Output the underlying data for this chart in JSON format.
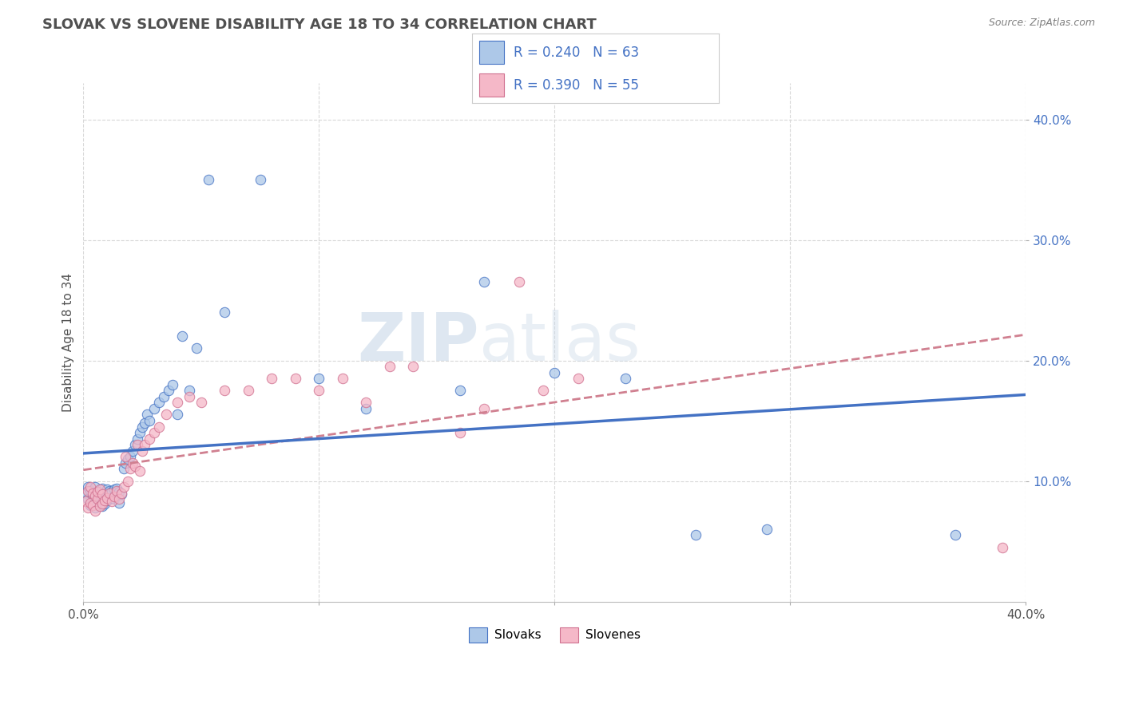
{
  "title": "SLOVAK VS SLOVENE DISABILITY AGE 18 TO 34 CORRELATION CHART",
  "source_text": "Source: ZipAtlas.com",
  "ylabel": "Disability Age 18 to 34",
  "xlim": [
    0.0,
    0.4
  ],
  "ylim": [
    0.0,
    0.43
  ],
  "x_ticks": [
    0.0,
    0.1,
    0.2,
    0.3,
    0.4
  ],
  "x_tick_labels": [
    "0.0%",
    "",
    "",
    "",
    "40.0%"
  ],
  "y_ticks": [
    0.1,
    0.2,
    0.3,
    0.4
  ],
  "y_tick_labels": [
    "10.0%",
    "20.0%",
    "30.0%",
    "40.0%"
  ],
  "legend_r1": "R = 0.240",
  "legend_n1": "N = 63",
  "legend_r2": "R = 0.390",
  "legend_n2": "N = 55",
  "legend_label1": "Slovaks",
  "legend_label2": "Slovenes",
  "color_slovak": "#adc8e8",
  "color_slovene": "#f5b8c8",
  "color_line_slovak": "#4472c4",
  "color_slovene_edge": "#d07090",
  "background_color": "#ffffff",
  "grid_color": "#d8d8d8",
  "title_color": "#505050",
  "title_fontsize": 13,
  "label_color": "#4472c4",
  "slovak_x": [
    0.001,
    0.002,
    0.002,
    0.003,
    0.003,
    0.004,
    0.004,
    0.005,
    0.005,
    0.006,
    0.006,
    0.007,
    0.007,
    0.008,
    0.008,
    0.009,
    0.009,
    0.01,
    0.01,
    0.011,
    0.011,
    0.012,
    0.012,
    0.013,
    0.013,
    0.014,
    0.014,
    0.015,
    0.015,
    0.016,
    0.017,
    0.018,
    0.019,
    0.02,
    0.021,
    0.022,
    0.023,
    0.024,
    0.025,
    0.026,
    0.027,
    0.028,
    0.03,
    0.032,
    0.034,
    0.036,
    0.038,
    0.04,
    0.042,
    0.045,
    0.048,
    0.053,
    0.06,
    0.075,
    0.1,
    0.12,
    0.16,
    0.17,
    0.2,
    0.23,
    0.26,
    0.29,
    0.37
  ],
  "slovak_y": [
    0.09,
    0.085,
    0.095,
    0.08,
    0.092,
    0.082,
    0.088,
    0.078,
    0.095,
    0.085,
    0.091,
    0.083,
    0.089,
    0.079,
    0.094,
    0.081,
    0.09,
    0.084,
    0.093,
    0.087,
    0.092,
    0.086,
    0.091,
    0.085,
    0.093,
    0.088,
    0.094,
    0.082,
    0.091,
    0.089,
    0.11,
    0.115,
    0.118,
    0.12,
    0.125,
    0.13,
    0.135,
    0.14,
    0.145,
    0.148,
    0.155,
    0.15,
    0.16,
    0.165,
    0.17,
    0.175,
    0.18,
    0.155,
    0.22,
    0.175,
    0.21,
    0.35,
    0.24,
    0.35,
    0.185,
    0.16,
    0.175,
    0.265,
    0.19,
    0.185,
    0.055,
    0.06,
    0.055
  ],
  "slovene_x": [
    0.001,
    0.002,
    0.002,
    0.003,
    0.003,
    0.004,
    0.004,
    0.005,
    0.005,
    0.006,
    0.006,
    0.007,
    0.007,
    0.008,
    0.008,
    0.009,
    0.01,
    0.011,
    0.012,
    0.013,
    0.014,
    0.015,
    0.016,
    0.017,
    0.018,
    0.019,
    0.02,
    0.021,
    0.022,
    0.023,
    0.024,
    0.025,
    0.026,
    0.028,
    0.03,
    0.032,
    0.035,
    0.04,
    0.045,
    0.05,
    0.06,
    0.07,
    0.08,
    0.09,
    0.1,
    0.11,
    0.12,
    0.13,
    0.14,
    0.16,
    0.17,
    0.185,
    0.195,
    0.21,
    0.39
  ],
  "slovene_y": [
    0.083,
    0.078,
    0.092,
    0.082,
    0.095,
    0.08,
    0.09,
    0.075,
    0.088,
    0.085,
    0.091,
    0.079,
    0.093,
    0.081,
    0.089,
    0.084,
    0.086,
    0.09,
    0.083,
    0.087,
    0.092,
    0.085,
    0.09,
    0.095,
    0.12,
    0.1,
    0.11,
    0.115,
    0.112,
    0.13,
    0.108,
    0.125,
    0.13,
    0.135,
    0.14,
    0.145,
    0.155,
    0.165,
    0.17,
    0.165,
    0.175,
    0.175,
    0.185,
    0.185,
    0.175,
    0.185,
    0.165,
    0.195,
    0.195,
    0.14,
    0.16,
    0.265,
    0.175,
    0.185,
    0.045
  ]
}
